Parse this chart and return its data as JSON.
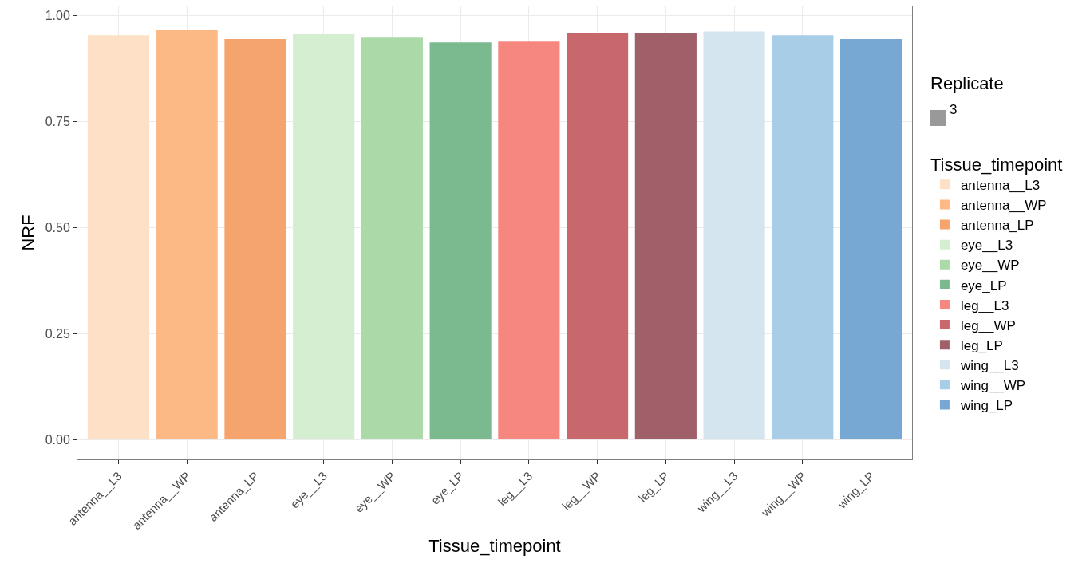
{
  "chart_data": {
    "type": "bar",
    "xlabel": "Tissue_timepoint",
    "ylabel": "NRF",
    "legend_title": "Tissue_timepoint",
    "annotations": [
      "Replicate",
      "3"
    ],
    "categories": [
      "antenna__L3",
      "antenna__WP",
      "antenna_LP",
      "eye__L3",
      "eye__WP",
      "eye_LP",
      "leg__L3",
      "leg__WP",
      "leg_LP",
      "wing__L3",
      "wing__WP",
      "wing_LP"
    ],
    "series": [
      {
        "name": "antenna__L3",
        "color": "#fde0c5",
        "values": [
          0.953,
          null,
          null,
          null,
          null,
          null,
          null,
          null,
          null,
          null,
          null,
          null
        ]
      },
      {
        "name": "antenna__WP",
        "color": "#fdb985",
        "values": [
          null,
          0.966,
          null,
          null,
          null,
          null,
          null,
          null,
          null,
          null,
          null,
          null
        ]
      },
      {
        "name": "antenna_LP",
        "color": "#f4a46c",
        "values": [
          null,
          null,
          0.944,
          null,
          null,
          null,
          null,
          null,
          null,
          null,
          null,
          null
        ]
      },
      {
        "name": "eye__L3",
        "color": "#d5eed1",
        "values": [
          null,
          null,
          null,
          0.955,
          null,
          null,
          null,
          null,
          null,
          null,
          null,
          null
        ]
      },
      {
        "name": "eye__WP",
        "color": "#abdaa8",
        "values": [
          null,
          null,
          null,
          null,
          0.947,
          null,
          null,
          null,
          null,
          null,
          null,
          null
        ]
      },
      {
        "name": "eye_LP",
        "color": "#7aba8e",
        "values": [
          null,
          null,
          null,
          null,
          null,
          0.936,
          null,
          null,
          null,
          null,
          null,
          null
        ]
      },
      {
        "name": "leg__L3",
        "color": "#f5877e",
        "values": [
          null,
          null,
          null,
          null,
          null,
          null,
          0.938,
          null,
          null,
          null,
          null,
          null
        ]
      },
      {
        "name": "leg__WP",
        "color": "#c9686c",
        "values": [
          null,
          null,
          null,
          null,
          null,
          null,
          null,
          0.957,
          null,
          null,
          null,
          null
        ]
      },
      {
        "name": "leg_LP",
        "color": "#a0606a",
        "values": [
          null,
          null,
          null,
          null,
          null,
          null,
          null,
          null,
          0.959,
          null,
          null,
          null
        ]
      },
      {
        "name": "wing__L3",
        "color": "#d5e5ef",
        "values": [
          null,
          null,
          null,
          null,
          null,
          null,
          null,
          null,
          null,
          0.962,
          null,
          null
        ]
      },
      {
        "name": "wing__WP",
        "color": "#a8cde6",
        "values": [
          null,
          null,
          null,
          null,
          null,
          null,
          null,
          null,
          null,
          null,
          0.953,
          null
        ]
      },
      {
        "name": "wing_LP",
        "color": "#76a8d3",
        "values": [
          null,
          null,
          null,
          null,
          null,
          null,
          null,
          null,
          null,
          null,
          null,
          0.944
        ]
      }
    ],
    "ylim": [
      -0.047,
      1.021
    ],
    "yticks": [
      {
        "value": 0,
        "label": "0.00"
      },
      {
        "value": 0.25,
        "label": "0.25"
      },
      {
        "value": 0.5,
        "label": "0.50"
      },
      {
        "value": 0.75,
        "label": "0.75"
      },
      {
        "value": 1,
        "label": "1.00"
      }
    ],
    "grid": true,
    "legend": "right"
  }
}
